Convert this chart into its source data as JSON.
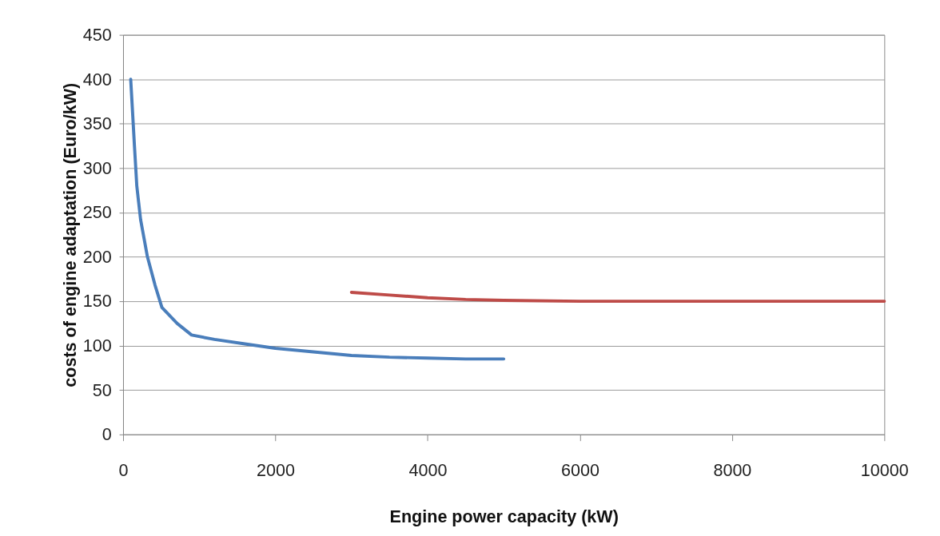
{
  "chart_data": {
    "type": "line",
    "xlabel": "Engine power capacity (kW)",
    "ylabel": "costs of engine adaptation  (Euro/kW)",
    "xlim": [
      0,
      10000
    ],
    "xticks": [
      0,
      2000,
      4000,
      6000,
      8000,
      10000
    ],
    "ylim": [
      0,
      450
    ],
    "yticks": [
      0,
      50,
      100,
      150,
      200,
      250,
      300,
      350,
      400,
      450
    ],
    "grid": "y",
    "legend": false,
    "series": [
      {
        "color": "#4a7ebb",
        "x": [
          100,
          150,
          180,
          230,
          320,
          420,
          510,
          710,
          900,
          1200,
          1600,
          2000,
          2500,
          3000,
          3500,
          4000,
          4500,
          5000
        ],
        "values": [
          400,
          324,
          280,
          242,
          200,
          168,
          143,
          125,
          112,
          107,
          102,
          97,
          93,
          89,
          87,
          86,
          85,
          85
        ]
      },
      {
        "color": "#be4b48",
        "x": [
          3000,
          3500,
          4000,
          4500,
          5000,
          6000,
          7000,
          8000,
          9000,
          10000
        ],
        "values": [
          160,
          157,
          154,
          152,
          151,
          150,
          150,
          150,
          150,
          150
        ]
      }
    ]
  }
}
